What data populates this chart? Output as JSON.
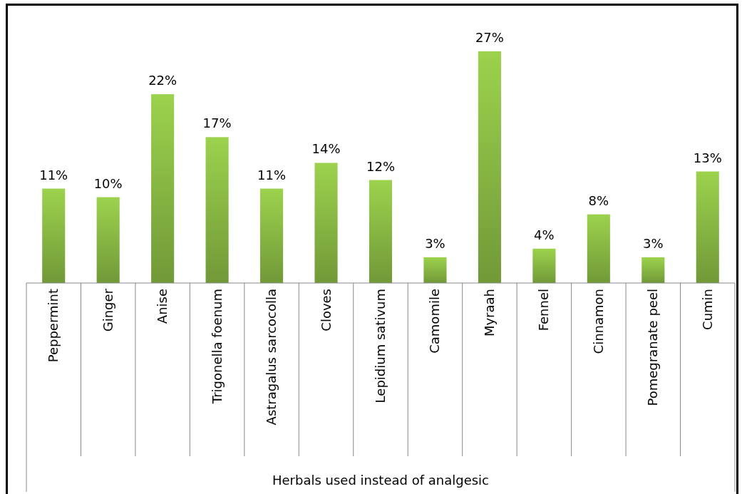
{
  "chart_data": {
    "type": "bar",
    "xlabel": "Herbals used instead of analgesic",
    "categories": [
      "Peppermint",
      "Ginger",
      "Anise",
      "Trigonella foenum",
      "Astragalus sarcocolla",
      "Cloves",
      "Lepidium sativum",
      "Camomile",
      "Myraah",
      "Fennel",
      "Cinnamon",
      "Pomegranate peel",
      "Cumin"
    ],
    "values": [
      11,
      10,
      22,
      17,
      11,
      14,
      12,
      3,
      27,
      4,
      8,
      3,
      13
    ],
    "value_labels": [
      "11%",
      "10%",
      "22%",
      "17%",
      "11%",
      "14%",
      "12%",
      "3%",
      "27%",
      "4%",
      "8%",
      "3%",
      "13%"
    ],
    "color": "#8cbd45"
  }
}
